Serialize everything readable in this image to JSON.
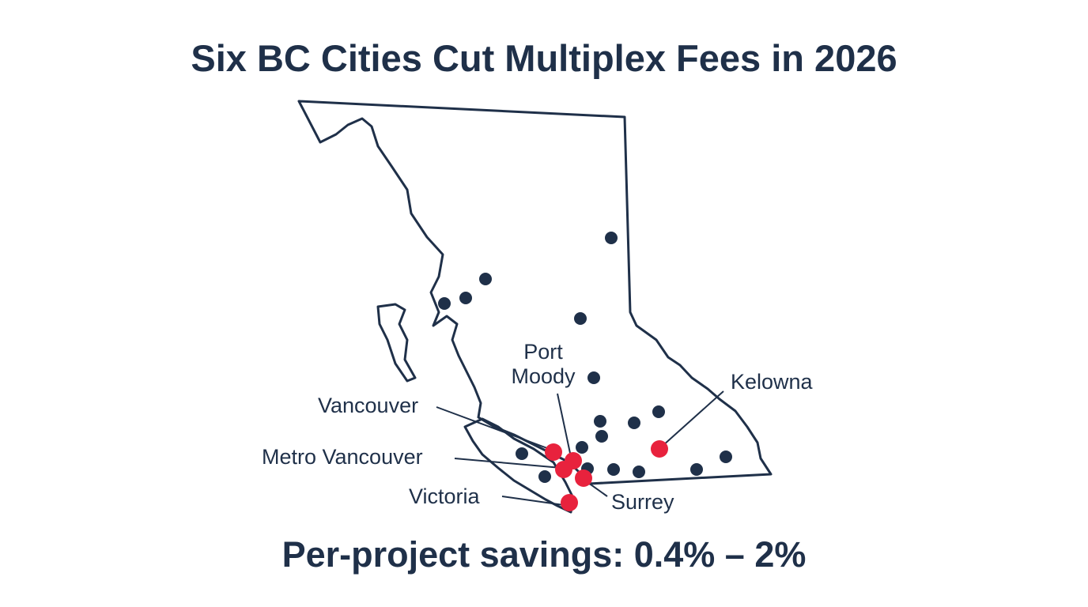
{
  "title": "Six BC Cities Cut Multiplex Fees in 2026",
  "map": {
    "labels": {
      "port_moody": "Port Moody",
      "kelowna": "Kelowna",
      "vancouver": "Vancouver",
      "metro_vancouver": "Metro Vancouver",
      "victoria": "Victoria",
      "surrey": "Surrey"
    }
  },
  "caption": "Per-project savings: 0.4% – 2%"
}
